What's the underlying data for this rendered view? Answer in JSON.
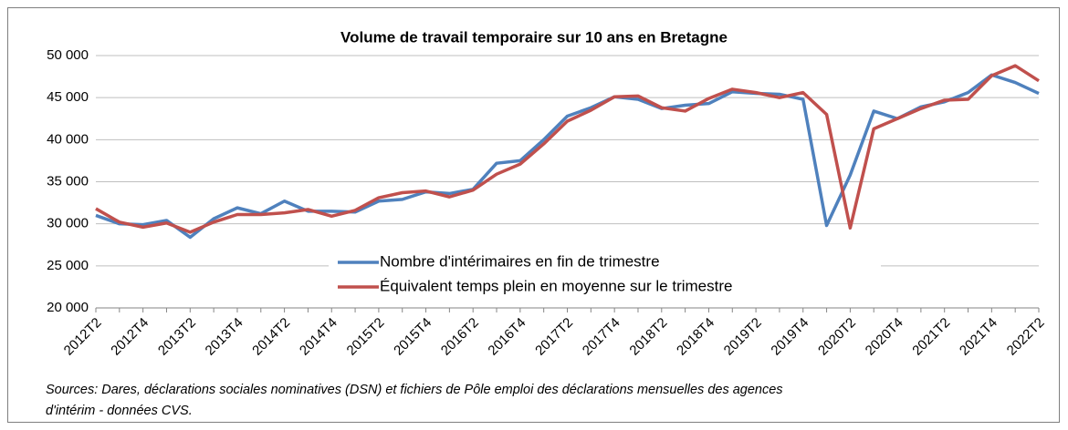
{
  "chart_data": {
    "type": "line",
    "title": "Volume de travail temporaire sur 10 ans en Bretagne",
    "source": [
      "Sources: Dares, déclarations sociales nominatives (DSN) et fichiers de Pôle emploi des déclarations mensuelles des agences",
      "d'intérim - données CVS."
    ],
    "categories": [
      "2012T2",
      null,
      "2012T4",
      null,
      "2013T2",
      null,
      "2013T4",
      null,
      "2014T2",
      null,
      "2014T4",
      null,
      "2015T2",
      null,
      "2015T4",
      null,
      "2016T2",
      null,
      "2016T4",
      null,
      "2017T2",
      null,
      "2017T4",
      null,
      "2018T2",
      null,
      "2018T4",
      null,
      "2019T2",
      null,
      "2019T4",
      null,
      "2020T2",
      null,
      "2020T4",
      null,
      "2021T2",
      null,
      "2021T4",
      null,
      "2022T2"
    ],
    "series": [
      {
        "name": "Nombre d'intérimaires en fin de trimestre",
        "color": "#4f81bd",
        "values": [
          31000,
          30000,
          29900,
          30400,
          28400,
          30600,
          31900,
          31200,
          32700,
          31500,
          31500,
          31400,
          32700,
          32900,
          33800,
          33600,
          34100,
          37200,
          37500,
          40000,
          42800,
          43800,
          45100,
          44800,
          43700,
          44100,
          44300,
          45700,
          45500,
          45400,
          44800,
          29800,
          35800,
          43400,
          42500,
          43900,
          44500,
          45600,
          47700,
          46800,
          45500
        ]
      },
      {
        "name": "Équivalent temps plein en moyenne sur le trimestre",
        "color": "#c0504d",
        "values": [
          31800,
          30200,
          29600,
          30100,
          29000,
          30200,
          31100,
          31100,
          31300,
          31700,
          30900,
          31600,
          33100,
          33700,
          33900,
          33200,
          34000,
          35900,
          37100,
          39500,
          42200,
          43500,
          45100,
          45200,
          43800,
          43400,
          44900,
          46000,
          45600,
          45000,
          45600,
          43000,
          29500,
          41300,
          42500,
          43700,
          44700,
          44800,
          47600,
          48800,
          47000
        ]
      }
    ],
    "ylim": [
      20000,
      50000
    ],
    "yticks": [
      {
        "value": 20000,
        "label": "20 000"
      },
      {
        "value": 25000,
        "label": "25 000"
      },
      {
        "value": 30000,
        "label": "30 000"
      },
      {
        "value": 35000,
        "label": "35 000"
      },
      {
        "value": 40000,
        "label": "40 000"
      },
      {
        "value": 45000,
        "label": "45 000"
      },
      {
        "value": 50000,
        "label": "50 000"
      }
    ],
    "grid": true,
    "legend": "center"
  }
}
